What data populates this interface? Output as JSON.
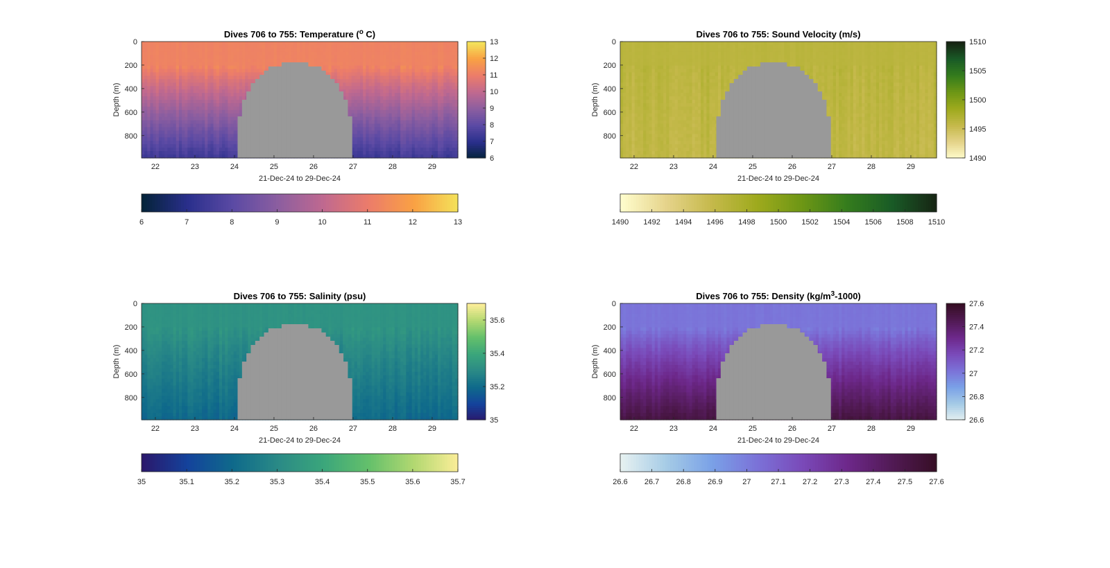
{
  "figure": {
    "panels": [
      {
        "title": "Dives 706 to 755: Temperature (",
        "title_sup": "o",
        "title_suffix": " C)",
        "ylabel": "Depth (m)",
        "xlabel": "21-Dec-24 to 29-Dec-24",
        "colormap": "thermal",
        "right_ticks": [
          "13",
          "12",
          "11",
          "10",
          "9",
          "8",
          "7",
          "6"
        ],
        "bottom_ticks": [
          "6",
          "7",
          "8",
          "9",
          "10",
          "11",
          "12",
          "13"
        ]
      },
      {
        "title": "Dives 706 to 755: Sound Velocity (m/s)",
        "title_sup": "",
        "title_suffix": "",
        "ylabel": "Depth (m)",
        "xlabel": "21-Dec-24 to 29-Dec-24",
        "colormap": "speed",
        "right_ticks": [
          "1510",
          "1505",
          "1500",
          "1495",
          "1490"
        ],
        "bottom_ticks": [
          "1490",
          "1492",
          "1494",
          "1496",
          "1498",
          "1500",
          "1502",
          "1504",
          "1506",
          "1508",
          "1510"
        ]
      },
      {
        "title": "Dives 706 to 755: Salinity (psu)",
        "title_sup": "",
        "title_suffix": "",
        "ylabel": "Depth (m)",
        "xlabel": "21-Dec-24 to 29-Dec-24",
        "colormap": "haline",
        "right_ticks": [
          "35.6",
          "35.4",
          "35.2",
          "35"
        ],
        "bottom_ticks": [
          "35",
          "35.1",
          "35.2",
          "35.3",
          "35.4",
          "35.5",
          "35.6",
          "35.7"
        ]
      },
      {
        "title": "Dives 706 to 755: Density (kg/m",
        "title_sup": "3",
        "title_suffix": "-1000)",
        "ylabel": "Depth (m)",
        "xlabel": "21-Dec-24 to 29-Dec-24",
        "colormap": "dense",
        "right_ticks": [
          "27.6",
          "27.4",
          "27.2",
          "27",
          "26.8",
          "26.6"
        ],
        "bottom_ticks": [
          "26.6",
          "26.7",
          "26.8",
          "26.9",
          "27",
          "27.1",
          "27.2",
          "27.3",
          "27.4",
          "27.5",
          "27.6"
        ]
      }
    ]
  },
  "chart_data": [
    {
      "type": "heatmap",
      "title": "Dives 706 to 755: Temperature (o C)",
      "xlabel": "21-Dec-24 to 29-Dec-24",
      "ylabel": "Depth (m)",
      "x_ticks": [
        "22",
        "23",
        "24",
        "25",
        "26",
        "27",
        "28",
        "29"
      ],
      "y_ticks": [
        "0",
        "200",
        "400",
        "600",
        "800"
      ],
      "xlim": [
        21.65,
        29.65
      ],
      "ylim": [
        990,
        0
      ],
      "clim": [
        6,
        13
      ],
      "surface_value": 11.2,
      "bottom_value": 7.5,
      "colorbar": {
        "placement": "right and bottom"
      }
    },
    {
      "type": "heatmap",
      "title": "Dives 706 to 755: Sound Velocity (m/s)",
      "xlabel": "21-Dec-24 to 29-Dec-24",
      "ylabel": "Depth (m)",
      "x_ticks": [
        "22",
        "23",
        "24",
        "25",
        "26",
        "27",
        "28",
        "29"
      ],
      "y_ticks": [
        "0",
        "200",
        "400",
        "600",
        "800"
      ],
      "xlim": [
        21.65,
        29.65
      ],
      "ylim": [
        990,
        0
      ],
      "clim": [
        1490,
        1510
      ],
      "surface_value": 1496.5,
      "bottom_value": 1496.0,
      "colorbar": {
        "placement": "right and bottom"
      }
    },
    {
      "type": "heatmap",
      "title": "Dives 706 to 755: Salinity (psu)",
      "xlabel": "21-Dec-24 to 29-Dec-24",
      "ylabel": "Depth (m)",
      "x_ticks": [
        "22",
        "23",
        "24",
        "25",
        "26",
        "27",
        "28",
        "29"
      ],
      "y_ticks": [
        "0",
        "200",
        "400",
        "600",
        "800"
      ],
      "xlim": [
        21.65,
        29.65
      ],
      "ylim": [
        990,
        0
      ],
      "clim": [
        35,
        35.7
      ],
      "surface_value": 35.33,
      "bottom_value": 35.2,
      "colorbar": {
        "placement": "right and bottom"
      }
    },
    {
      "type": "heatmap",
      "title": "Dives 706 to 755: Density (kg/m3-1000)",
      "xlabel": "21-Dec-24 to 29-Dec-24",
      "ylabel": "Depth (m)",
      "x_ticks": [
        "22",
        "23",
        "24",
        "25",
        "26",
        "27",
        "28",
        "29"
      ],
      "y_ticks": [
        "0",
        "200",
        "400",
        "600",
        "800"
      ],
      "xlim": [
        21.65,
        29.65
      ],
      "ylim": [
        990,
        0
      ],
      "clim": [
        26.6,
        27.6
      ],
      "surface_value": 27.02,
      "bottom_value": 27.5,
      "colorbar": {
        "placement": "right and bottom"
      }
    }
  ],
  "no_data_region": {
    "color": "#999999",
    "start_day": 24.08,
    "end_day": 26.97,
    "min_depth": 185
  },
  "colormaps": {
    "thermal": [
      "#04233a",
      "#2a2f8c",
      "#5b4aa4",
      "#8c5ea0",
      "#c0698f",
      "#ec7c6a",
      "#f9a144",
      "#f4e45a"
    ],
    "speed": [
      "#fffdcd",
      "#e5d38a",
      "#c5b94b",
      "#9eaa1d",
      "#6d9615",
      "#347c1d",
      "#195a26",
      "#172313"
    ],
    "haline": [
      "#2a186c",
      "#14439c",
      "#0f6a8b",
      "#2a8a86",
      "#3ba67b",
      "#64c06b",
      "#b2d871",
      "#fdee99"
    ],
    "dense": [
      "#e6f1f1",
      "#a5cbe6",
      "#7aa1e7",
      "#7b72d8",
      "#7a4ab9",
      "#6d288a",
      "#511a54",
      "#360e24"
    ]
  }
}
